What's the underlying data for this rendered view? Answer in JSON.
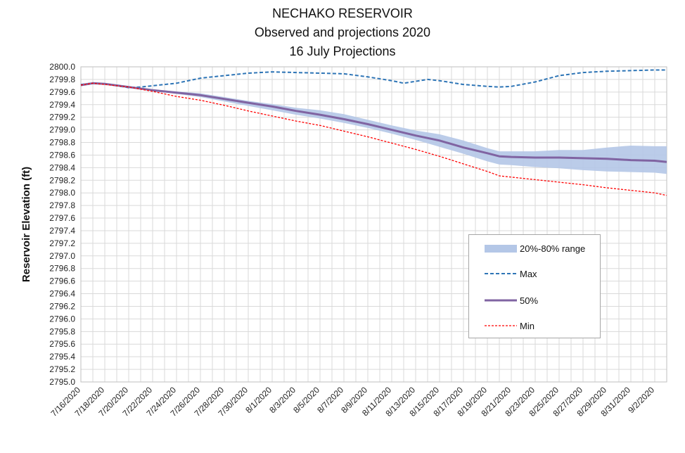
{
  "chart_data": {
    "type": "line",
    "title": [
      "NECHAKO RESERVOIR",
      "Observed and projections 2020",
      "16 July Projections"
    ],
    "xlabel": "",
    "ylabel": "Reservoir Elevation (ft)",
    "ylim": [
      2795.0,
      2800.0
    ],
    "ytick_step": 0.2,
    "x_start": "7/16/2020",
    "x_end": "9/3/2020",
    "x_tick_labels": [
      "7/16/2020",
      "7/18/2020",
      "7/20/2020",
      "7/22/2020",
      "7/24/2020",
      "7/26/2020",
      "7/28/2020",
      "7/30/2020",
      "8/1/2020",
      "8/3/2020",
      "8/5/2020",
      "8/7/2020",
      "8/9/2020",
      "8/11/2020",
      "8/13/2020",
      "8/15/2020",
      "8/17/2020",
      "8/19/2020",
      "8/21/2020",
      "8/23/2020",
      "8/25/2020",
      "8/27/2020",
      "8/29/2020",
      "8/31/2020",
      "9/2/2020"
    ],
    "grid": true,
    "legend_position": "bottom-right",
    "series": [
      {
        "name": "20%-80% range",
        "kind": "band",
        "color": "#b4c7e7",
        "x": [
          "7/16/2020",
          "7/18/2020",
          "7/20/2020",
          "7/22/2020",
          "7/24/2020",
          "7/26/2020",
          "7/28/2020",
          "7/30/2020",
          "8/1/2020",
          "8/3/2020",
          "8/5/2020",
          "8/7/2020",
          "8/9/2020",
          "8/11/2020",
          "8/13/2020",
          "8/15/2020",
          "8/17/2020",
          "8/19/2020",
          "8/20/2020",
          "8/21/2020",
          "8/23/2020",
          "8/25/2020",
          "8/27/2020",
          "8/29/2020",
          "8/31/2020",
          "9/2/2020",
          "9/3/2020"
        ],
        "lower": [
          2799.72,
          2799.73,
          2799.68,
          2799.62,
          2799.57,
          2799.52,
          2799.45,
          2799.38,
          2799.31,
          2799.24,
          2799.18,
          2799.11,
          2799.03,
          2798.94,
          2798.84,
          2798.73,
          2798.62,
          2798.5,
          2798.45,
          2798.44,
          2798.41,
          2798.39,
          2798.36,
          2798.34,
          2798.33,
          2798.32,
          2798.3
        ],
        "upper": [
          2799.72,
          2799.73,
          2799.69,
          2799.64,
          2799.61,
          2799.58,
          2799.52,
          2799.46,
          2799.41,
          2799.35,
          2799.31,
          2799.25,
          2799.16,
          2799.07,
          2798.99,
          2798.93,
          2798.83,
          2798.71,
          2798.66,
          2798.66,
          2798.66,
          2798.68,
          2798.68,
          2798.72,
          2798.75,
          2798.74,
          2798.74
        ]
      },
      {
        "name": "Max",
        "kind": "line",
        "style": "dashed",
        "color": "#2e75b6",
        "x": [
          "7/16/2020",
          "7/17/2020",
          "7/18/2020",
          "7/19/2020",
          "7/20/2020",
          "7/21/2020",
          "7/22/2020",
          "7/23/2020",
          "7/24/2020",
          "7/26/2020",
          "7/28/2020",
          "7/30/2020",
          "8/1/2020",
          "8/3/2020",
          "8/5/2020",
          "8/7/2020",
          "8/9/2020",
          "8/11/2020",
          "8/12/2020",
          "8/13/2020",
          "8/14/2020",
          "8/15/2020",
          "8/17/2020",
          "8/19/2020",
          "8/20/2020",
          "8/21/2020",
          "8/23/2020",
          "8/25/2020",
          "8/27/2020",
          "8/29/2020",
          "8/31/2020",
          "9/2/2020",
          "9/3/2020"
        ],
        "y": [
          2799.72,
          2799.74,
          2799.73,
          2799.7,
          2799.67,
          2799.68,
          2799.7,
          2799.72,
          2799.74,
          2799.82,
          2799.86,
          2799.9,
          2799.92,
          2799.91,
          2799.9,
          2799.89,
          2799.84,
          2799.78,
          2799.74,
          2799.77,
          2799.8,
          2799.78,
          2799.72,
          2799.69,
          2799.68,
          2799.69,
          2799.76,
          2799.86,
          2799.91,
          2799.93,
          2799.94,
          2799.95,
          2799.95
        ]
      },
      {
        "name": "50%",
        "kind": "line",
        "style": "solid",
        "color": "#8064a2",
        "x": [
          "7/16/2020",
          "7/17/2020",
          "7/18/2020",
          "7/20/2020",
          "7/22/2020",
          "7/24/2020",
          "7/26/2020",
          "7/28/2020",
          "7/30/2020",
          "8/1/2020",
          "8/3/2020",
          "8/5/2020",
          "8/7/2020",
          "8/9/2020",
          "8/11/2020",
          "8/13/2020",
          "8/15/2020",
          "8/17/2020",
          "8/19/2020",
          "8/20/2020",
          "8/21/2020",
          "8/23/2020",
          "8/25/2020",
          "8/27/2020",
          "8/29/2020",
          "8/31/2020",
          "9/2/2020",
          "9/3/2020"
        ],
        "y": [
          2799.71,
          2799.74,
          2799.73,
          2799.68,
          2799.63,
          2799.59,
          2799.55,
          2799.49,
          2799.43,
          2799.37,
          2799.3,
          2799.24,
          2799.17,
          2799.09,
          2799.0,
          2798.91,
          2798.83,
          2798.72,
          2798.63,
          2798.58,
          2798.57,
          2798.56,
          2798.56,
          2798.55,
          2798.54,
          2798.52,
          2798.51,
          2798.49
        ]
      },
      {
        "name": "Min",
        "kind": "line",
        "style": "dotted",
        "color": "#ff0000",
        "x": [
          "7/16/2020",
          "7/17/2020",
          "7/18/2020",
          "7/20/2020",
          "7/22/2020",
          "7/24/2020",
          "7/26/2020",
          "7/28/2020",
          "7/30/2020",
          "8/1/2020",
          "8/3/2020",
          "8/5/2020",
          "8/7/2020",
          "8/9/2020",
          "8/11/2020",
          "8/13/2020",
          "8/15/2020",
          "8/17/2020",
          "8/19/2020",
          "8/20/2020",
          "8/21/2020",
          "8/23/2020",
          "8/25/2020",
          "8/27/2020",
          "8/29/2020",
          "8/31/2020",
          "9/2/2020",
          "9/3/2020"
        ],
        "y": [
          2799.71,
          2799.74,
          2799.72,
          2799.68,
          2799.61,
          2799.53,
          2799.47,
          2799.39,
          2799.3,
          2799.22,
          2799.14,
          2799.07,
          2798.98,
          2798.89,
          2798.79,
          2798.69,
          2798.58,
          2798.46,
          2798.34,
          2798.27,
          2798.25,
          2798.21,
          2798.17,
          2798.13,
          2798.08,
          2798.04,
          2798.0,
          2797.96
        ]
      }
    ]
  }
}
